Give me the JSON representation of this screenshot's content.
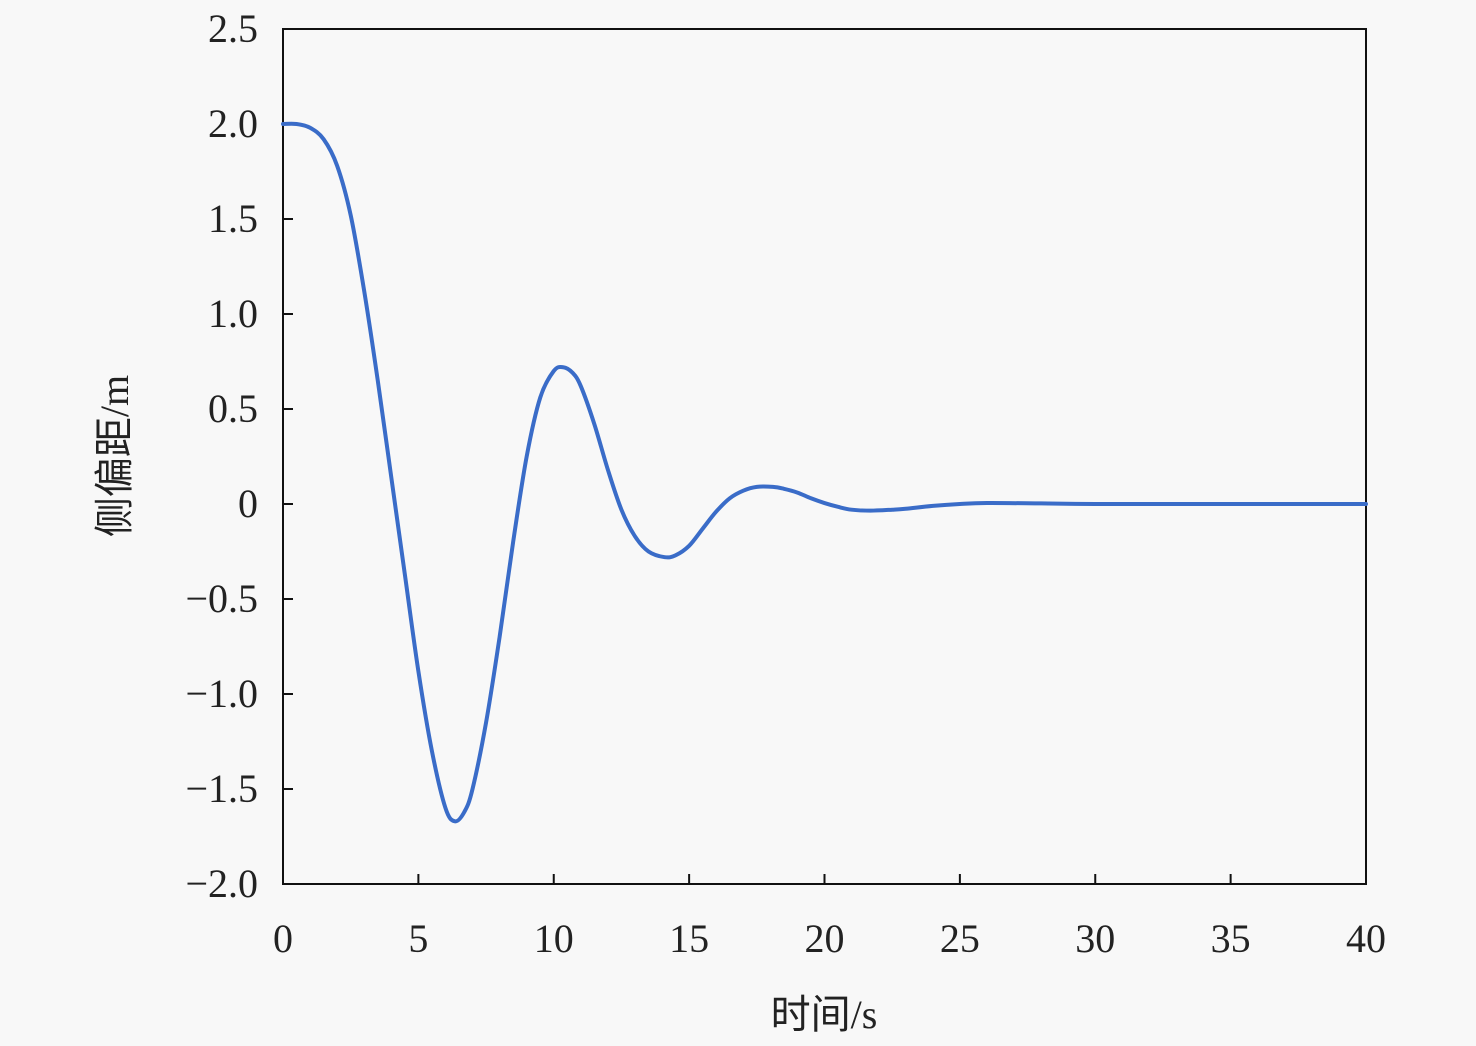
{
  "chart_data": {
    "type": "line",
    "title": "",
    "xlabel": "时间/s",
    "ylabel": "侧偏距/m",
    "xlim": [
      0,
      40
    ],
    "ylim": [
      -2.0,
      2.5
    ],
    "xticks": [
      "0",
      "5",
      "10",
      "15",
      "20",
      "25",
      "30",
      "35",
      "40"
    ],
    "yticks": [
      "2.5",
      "2.0",
      "1.5",
      "1.0",
      "0.5",
      "0",
      "−0.5",
      "−1.0",
      "−1.5",
      "−2.0"
    ],
    "grid": false,
    "line_color": "#3a6cc8",
    "series": [
      {
        "x": [
          0,
          0.5,
          1.0,
          1.5,
          2.0,
          2.5,
          3.0,
          3.5,
          4.0,
          4.5,
          5.0,
          5.5,
          6.0,
          6.35,
          6.7,
          7.0,
          7.5,
          8.0,
          8.5,
          9.0,
          9.5,
          10.0,
          10.35,
          10.7,
          11.0,
          11.5,
          12.0,
          12.5,
          13.0,
          13.5,
          14.1,
          14.5,
          15.0,
          15.5,
          16.0,
          16.5,
          17.0,
          17.5,
          18.1,
          18.5,
          19.0,
          19.5,
          20.0,
          20.5,
          21.0,
          21.7,
          22.5,
          23.0,
          24.0,
          25.0,
          26.0,
          28.0,
          30.0,
          35.0,
          40.0
        ],
        "y": [
          2.0,
          2.0,
          1.98,
          1.92,
          1.78,
          1.52,
          1.12,
          0.65,
          0.14,
          -0.37,
          -0.88,
          -1.3,
          -1.6,
          -1.67,
          -1.62,
          -1.5,
          -1.15,
          -0.7,
          -0.2,
          0.25,
          0.56,
          0.7,
          0.72,
          0.69,
          0.62,
          0.42,
          0.18,
          -0.03,
          -0.17,
          -0.25,
          -0.28,
          -0.27,
          -0.22,
          -0.13,
          -0.04,
          0.03,
          0.07,
          0.09,
          0.09,
          0.08,
          0.06,
          0.03,
          0.005,
          -0.015,
          -0.03,
          -0.035,
          -0.03,
          -0.025,
          -0.01,
          0.0,
          0.005,
          0.003,
          0.0,
          0.0,
          0.0
        ]
      }
    ]
  }
}
